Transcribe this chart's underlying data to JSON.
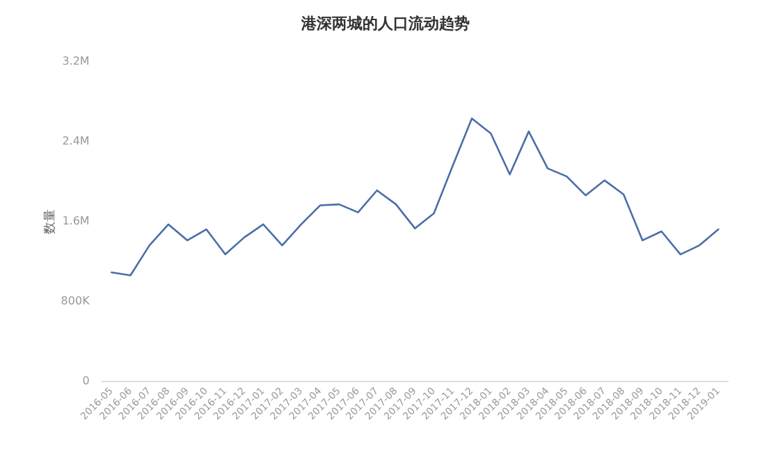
{
  "chart_data": {
    "type": "line",
    "title": "港深两城的人口流动趋势",
    "ylabel": "数量",
    "categories": [
      "2016-05",
      "2016-06",
      "2016-07",
      "2016-08",
      "2016-09",
      "2016-10",
      "2016-11",
      "2016-12",
      "2017-01",
      "2017-02",
      "2017-03",
      "2017-04",
      "2017-05",
      "2017-06",
      "2017-07",
      "2017-08",
      "2017-09",
      "2017-10",
      "2017-11",
      "2017-12",
      "2018-01",
      "2018-02",
      "2018-03",
      "2018-04",
      "2018-05",
      "2018-06",
      "2018-07",
      "2018-08",
      "2018-09",
      "2018-10",
      "2018-11",
      "2018-12",
      "2019-01"
    ],
    "series": [
      {
        "color": "#4a6ea8",
        "values": [
          1090000,
          1060000,
          1360000,
          1570000,
          1410000,
          1520000,
          1270000,
          1440000,
          1570000,
          1360000,
          1570000,
          1760000,
          1770000,
          1690000,
          1910000,
          1770000,
          1530000,
          1680000,
          2160000,
          2630000,
          2480000,
          2070000,
          2500000,
          2130000,
          2050000,
          1860000,
          2010000,
          1870000,
          1410000,
          1500000,
          1270000,
          1360000,
          1520000
        ]
      }
    ],
    "ylim": [
      0,
      3200000
    ],
    "yticks": [
      0,
      {
        "value": 800000,
        "label": "800K"
      },
      {
        "value": 1600000,
        "label": "1.6M"
      },
      {
        "value": 2400000,
        "label": "2.4M"
      },
      {
        "value": 3200000,
        "label": "3.2M"
      }
    ],
    "grid": false,
    "legend": false,
    "marker": "none",
    "line_style": "solid"
  }
}
